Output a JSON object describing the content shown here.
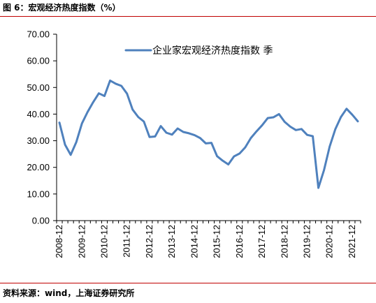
{
  "figure": {
    "title": "图 6：宏观经济热度指数（%）",
    "source": "资料来源：wind，上海证券研究所"
  },
  "colors": {
    "line": "#4f81bd",
    "rule": "#c00000"
  },
  "chart_data": {
    "type": "line",
    "title": "",
    "xlabel": "",
    "ylabel": "",
    "ylim": [
      0,
      70
    ],
    "yticks": [
      "0.00",
      "10.00",
      "20.00",
      "30.00",
      "40.00",
      "50.00",
      "60.00",
      "70.00"
    ],
    "xticks": [
      "2008-12",
      "2009-12",
      "2010-12",
      "2011-12",
      "2012-12",
      "2013-12",
      "2014-12",
      "2015-12",
      "2016-12",
      "2017-12",
      "2018-12",
      "2019-12",
      "2020-12",
      "2021-12"
    ],
    "grid": false,
    "legend_position": "top",
    "series": [
      {
        "name": "企业家宏观经济热度指数 季",
        "values": [
          36.8,
          28.5,
          24.7,
          29.5,
          36.5,
          40.8,
          44.5,
          47.8,
          46.8,
          52.6,
          51.4,
          50.6,
          47.7,
          41.7,
          38.9,
          37.2,
          31.4,
          31.6,
          35.5,
          33.0,
          32.3,
          34.6,
          33.3,
          32.8,
          32.1,
          31.0,
          29.0,
          29.2,
          24.2,
          22.5,
          21.1,
          24.1,
          25.2,
          27.5,
          31.0,
          33.5,
          35.8,
          38.5,
          38.8,
          40.0,
          37.1,
          35.3,
          34.0,
          34.4,
          32.2,
          31.7,
          12.3,
          19.0,
          27.8,
          34.3,
          38.9,
          42.0,
          39.8,
          37.3
        ]
      }
    ]
  }
}
